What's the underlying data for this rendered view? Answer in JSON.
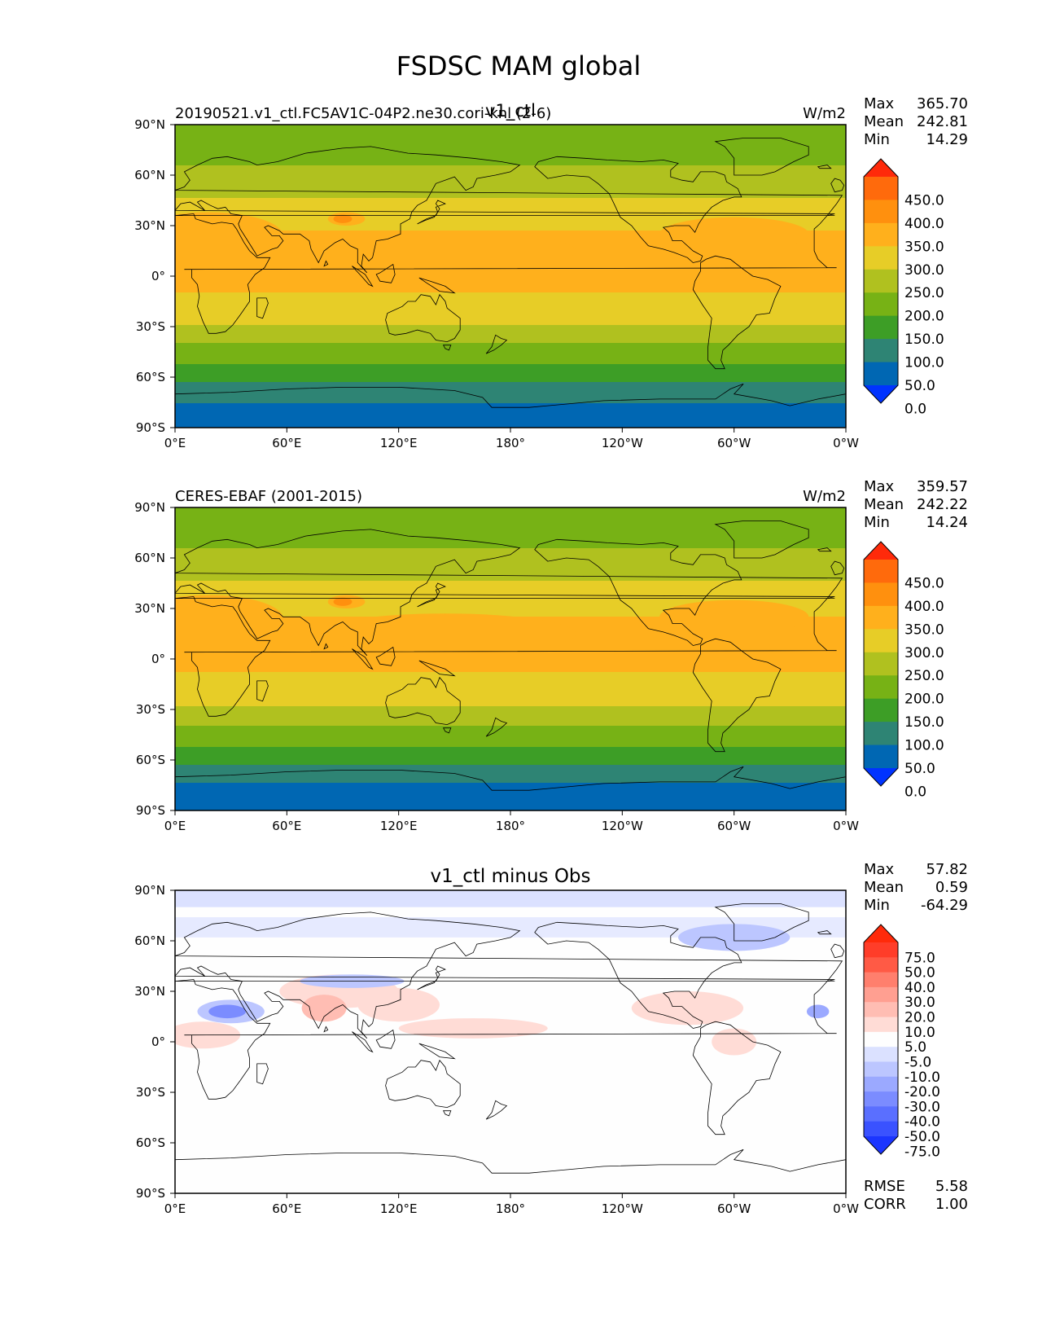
{
  "figure_title": "FSDSC MAM global",
  "panels": [
    {
      "id": "test",
      "title_left": "20190521.v1_ctl.FC5AV1C-04P2.ne30.cori-knl (2-6)",
      "title_center": "v1_ctl",
      "units": "W/m2",
      "stats": [
        {
          "label": "Max",
          "value": "365.70"
        },
        {
          "label": "Mean",
          "value": "242.81"
        },
        {
          "label": "Min",
          "value": "14.29"
        }
      ]
    },
    {
      "id": "ref",
      "title_left": "CERES-EBAF (2001-2015)",
      "title_center": "",
      "units": "W/m2",
      "stats": [
        {
          "label": "Max",
          "value": "359.57"
        },
        {
          "label": "Mean",
          "value": "242.22"
        },
        {
          "label": "Min",
          "value": "14.24"
        }
      ]
    },
    {
      "id": "diff",
      "title_left": "",
      "title_center": "v1_ctl minus Obs",
      "units": "",
      "stats": [
        {
          "label": "Max",
          "value": "57.82"
        },
        {
          "label": "Mean",
          "value": "0.59"
        },
        {
          "label": "Min",
          "value": "-64.29"
        }
      ],
      "extra_stats": [
        {
          "label": "RMSE",
          "value": "5.58"
        },
        {
          "label": "CORR",
          "value": "1.00"
        }
      ]
    }
  ],
  "axes": {
    "x_ticks": [
      "0°E",
      "60°E",
      "120°E",
      "180°",
      "120°W",
      "60°W",
      "0°W"
    ],
    "y_ticks": [
      "90°N",
      "60°N",
      "30°N",
      "0°",
      "30°S",
      "60°S",
      "90°S"
    ],
    "xlim": [
      0,
      360
    ],
    "ylim": [
      -90,
      90
    ]
  },
  "colorbars": {
    "main": {
      "labels": [
        "450.0",
        "400.0",
        "350.0",
        "300.0",
        "250.0",
        "200.0",
        "150.0",
        "100.0",
        "50.0",
        "0.0"
      ],
      "colors": [
        "#ff2a0a",
        "#ff6a0c",
        "#ff900e",
        "#ffb01c",
        "#e7cd27",
        "#b0c11f",
        "#77b215",
        "#3d9e26",
        "#2e8474",
        "#0067b3",
        "#0033ff"
      ]
    },
    "diff": {
      "labels": [
        "75.0",
        "50.0",
        "40.0",
        "30.0",
        "20.0",
        "10.0",
        "5.0",
        "-5.0",
        "-10.0",
        "-20.0",
        "-30.0",
        "-40.0",
        "-50.0",
        "-75.0"
      ],
      "colors": [
        "#ff2a0a",
        "#ff3d29",
        "#ff5a45",
        "#ff7f6d",
        "#ff9f91",
        "#ffbdb3",
        "#ffdcd6",
        "#fefefe",
        "#dbe1ff",
        "#bcc6ff",
        "#9ba9ff",
        "#7b8cff",
        "#5a6fff",
        "#3a52ff",
        "#1b35ff"
      ]
    }
  },
  "chart_data": [
    {
      "type": "heatmap",
      "title": "v1_ctl",
      "subtitle": "20190521.v1_ctl.FC5AV1C-04P2.ne30.cori-knl (2-6)",
      "units": "W/m2",
      "xlabel": "",
      "ylabel": "",
      "xlim": [
        0,
        360
      ],
      "ylim": [
        -90,
        90
      ],
      "levels": [
        0,
        50,
        100,
        150,
        200,
        250,
        300,
        350,
        400,
        450
      ],
      "zonal_profile": {
        "lat": [
          90,
          80,
          70,
          60,
          50,
          40,
          30,
          20,
          10,
          0,
          -10,
          -20,
          -30,
          -40,
          -50,
          -60,
          -70,
          -80,
          -90
        ],
        "value": [
          180,
          175,
          190,
          215,
          240,
          270,
          295,
          310,
          315,
          310,
          300,
          280,
          245,
          200,
          160,
          120,
          60,
          40,
          30
        ]
      },
      "stats": {
        "max": 365.7,
        "mean": 242.81,
        "min": 14.29
      }
    },
    {
      "type": "heatmap",
      "title": "CERES-EBAF (2001-2015)",
      "units": "W/m2",
      "xlabel": "",
      "ylabel": "",
      "xlim": [
        0,
        360
      ],
      "ylim": [
        -90,
        90
      ],
      "levels": [
        0,
        50,
        100,
        150,
        200,
        250,
        300,
        350,
        400,
        450
      ],
      "zonal_profile": {
        "lat": [
          90,
          80,
          70,
          60,
          50,
          40,
          30,
          20,
          10,
          0,
          -10,
          -20,
          -30,
          -40,
          -50,
          -60,
          -70,
          -80,
          -90
        ],
        "value": [
          180,
          175,
          190,
          215,
          240,
          268,
          292,
          308,
          312,
          308,
          298,
          278,
          244,
          198,
          158,
          118,
          58,
          38,
          28
        ]
      },
      "stats": {
        "max": 359.57,
        "mean": 242.22,
        "min": 14.24
      }
    },
    {
      "type": "heatmap",
      "title": "v1_ctl minus Obs",
      "xlabel": "",
      "ylabel": "",
      "xlim": [
        0,
        360
      ],
      "ylim": [
        -90,
        90
      ],
      "levels": [
        -75,
        -50,
        -40,
        -30,
        -20,
        -10,
        -5,
        5,
        10,
        20,
        30,
        40,
        50,
        75
      ],
      "stats": {
        "max": 57.82,
        "mean": 0.59,
        "min": -64.29,
        "rmse": 5.58,
        "corr": 1.0
      }
    }
  ]
}
